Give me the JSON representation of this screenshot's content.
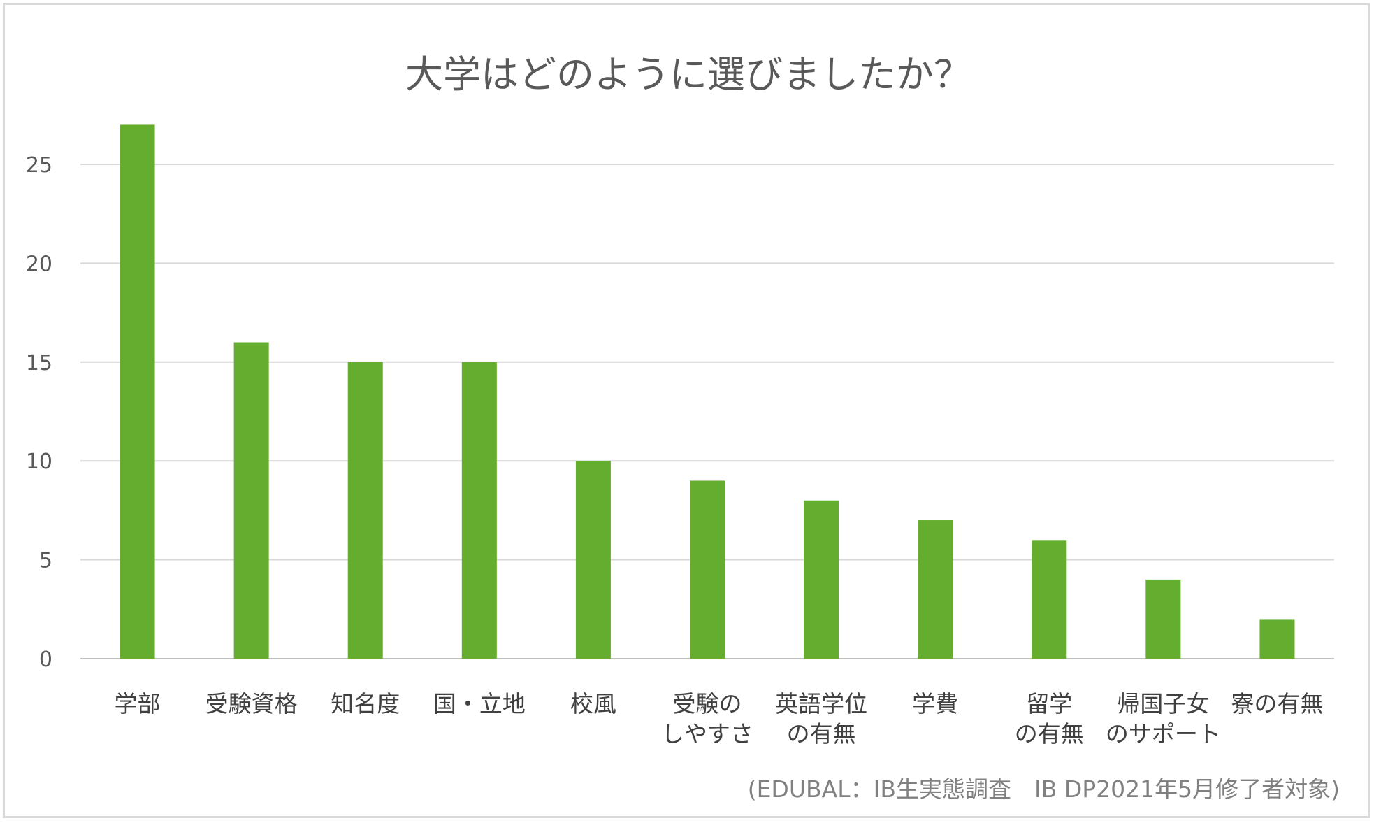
{
  "chart_data": {
    "type": "bar",
    "title": "大学はどのように選びましたか？",
    "categories": [
      [
        "学部"
      ],
      [
        "受験資格"
      ],
      [
        "知名度"
      ],
      [
        "国・立地"
      ],
      [
        "校風"
      ],
      [
        "受験の",
        "しやすさ"
      ],
      [
        "英語学位",
        "の有無"
      ],
      [
        "学費"
      ],
      [
        "留学",
        "の有無"
      ],
      [
        "帰国子女",
        "のサポート"
      ],
      [
        "寮の有無"
      ]
    ],
    "values": [
      27,
      16,
      15,
      15,
      10,
      9,
      8,
      7,
      6,
      4,
      2
    ],
    "ylim": [
      0,
      25
    ],
    "yticks": [
      "0",
      "5",
      "10",
      "15",
      "20",
      "25"
    ],
    "grid": true,
    "xlabel": "",
    "ylabel": "",
    "source_note": "(EDUBAL：IB生実態調査　IB DP2021年5月修了者対象)",
    "colors": {
      "bar": "#64ad2f",
      "grid": "#d9d9d9",
      "text": "#595959"
    }
  }
}
